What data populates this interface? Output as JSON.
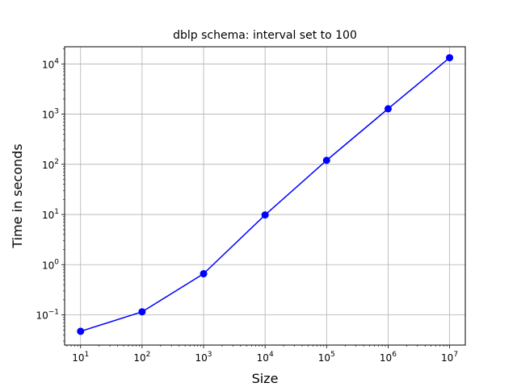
{
  "chart_data": {
    "type": "line",
    "title": "dblp schema: interval set to 100",
    "xlabel": "Size",
    "ylabel": "Time in seconds",
    "x_scale": "log",
    "y_scale": "log",
    "xlim": [
      5.5,
      18000000
    ],
    "ylim": [
      0.025,
      22000
    ],
    "grid": true,
    "x_ticks": [
      {
        "value": 10,
        "base": "10",
        "exp": "1"
      },
      {
        "value": 100,
        "base": "10",
        "exp": "2"
      },
      {
        "value": 1000,
        "base": "10",
        "exp": "3"
      },
      {
        "value": 10000,
        "base": "10",
        "exp": "4"
      },
      {
        "value": 100000,
        "base": "10",
        "exp": "5"
      },
      {
        "value": 1000000,
        "base": "10",
        "exp": "6"
      },
      {
        "value": 10000000,
        "base": "10",
        "exp": "7"
      }
    ],
    "y_ticks": [
      {
        "value": 0.1,
        "base": "10",
        "exp": "−1"
      },
      {
        "value": 1,
        "base": "10",
        "exp": "0"
      },
      {
        "value": 10,
        "base": "10",
        "exp": "1"
      },
      {
        "value": 100,
        "base": "10",
        "exp": "2"
      },
      {
        "value": 1000,
        "base": "10",
        "exp": "3"
      },
      {
        "value": 10000,
        "base": "10",
        "exp": "4"
      }
    ],
    "series": [
      {
        "color": "#0000ff",
        "marker": "circle",
        "x": [
          10,
          100,
          1000,
          10000,
          100000,
          1000000,
          10000000
        ],
        "y": [
          0.047,
          0.115,
          0.66,
          9.8,
          120,
          1280,
          13300
        ]
      }
    ]
  }
}
